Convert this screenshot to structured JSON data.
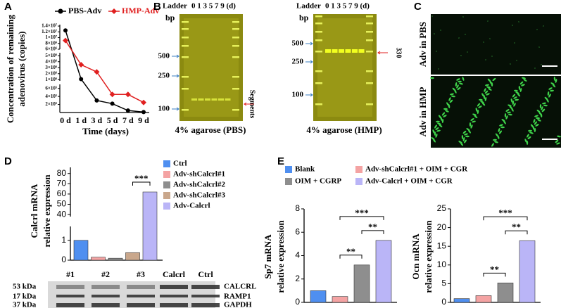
{
  "chart_data": [
    {
      "type": "line",
      "panel": "A",
      "ylabel": [
        "Concentration of remaining",
        "adenovirus (copies)"
      ],
      "xlabel": "Time (days)",
      "categories": [
        "0 d",
        "1 d",
        "3 d",
        "5 d",
        "7 d",
        "9 d"
      ],
      "series": [
        {
          "name": "PBS-Adv",
          "color": "#000000",
          "values": [
            12500000,
            1100000,
            300000,
            220000,
            50000,
            10000
          ]
        },
        {
          "name": "HMP-Adv",
          "color": "#e02020",
          "values": [
            9000000,
            3500000,
            2300000,
            450000,
            450000,
            250000
          ]
        }
      ],
      "y_segments": [
        {
          "ylim": [
            0,
            700000
          ],
          "yticks": [
            {
              "value": 200000,
              "label": "2×10⁵"
            },
            {
              "value": 400000,
              "label": "4×10⁵"
            },
            {
              "value": 600000,
              "label": "6×10⁵"
            }
          ]
        },
        {
          "ylim": [
            800000,
            5500000
          ],
          "yticks": [
            {
              "value": 1000000,
              "label": "1×10⁶"
            },
            {
              "value": 2000000,
              "label": "2×10⁶"
            },
            {
              "value": 3000000,
              "label": "3×10⁶"
            },
            {
              "value": 4000000,
              "label": "4×10⁶"
            },
            {
              "value": 5000000,
              "label": "5×10⁶"
            }
          ]
        },
        {
          "ylim": [
            6000000,
            14500000
          ],
          "yticks": [
            {
              "value": 6000000,
              "label": "6×10⁶"
            },
            {
              "value": 8000000,
              "label": "8×10⁶"
            },
            {
              "value": 10000000,
              "label": "1×10⁷"
            },
            {
              "value": 12000000,
              "label": "1.2×10⁷"
            },
            {
              "value": 14000000,
              "label": "1.4×10⁷"
            }
          ]
        }
      ],
      "legend": "top"
    },
    {
      "type": "bar",
      "panel": "D",
      "categories": [
        "Ctrl",
        "Adv-shCalcrl#1",
        "Adv-shCalcrl#2",
        "Adv-shCalcrl#3",
        "Adv-Calcrl"
      ],
      "colors": [
        "#4f8ff0",
        "#f4a3a3",
        "#8e8e8e",
        "#c9a78c",
        "#bab5f7"
      ],
      "ylabel": [
        "Calcrl mRNA",
        "relative expression"
      ],
      "values": [
        1,
        0.15,
        0.1,
        0.38,
        62
      ],
      "y_segments": [
        {
          "ylim": [
            0,
            1.7
          ],
          "yticks": [
            0,
            1
          ]
        },
        {
          "ylim": [
            38,
            86
          ],
          "yticks": [
            40,
            50,
            60,
            70,
            80
          ]
        }
      ],
      "significance": [
        {
          "from": 3,
          "to": 4,
          "label": "***"
        }
      ]
    },
    {
      "type": "bar",
      "panel": "E",
      "categories": [
        "Blank",
        "Adv-shCalcrl#1 + OIM + CGR",
        "OIM + CGRP",
        "Adv-Calcrl + OIM + CGR"
      ],
      "colors": [
        "#4f8ff0",
        "#f4a3a3",
        "#8e8e8e",
        "#bab5f7"
      ],
      "subplots": [
        {
          "ylabel": [
            "Sp7 mRNA",
            "relative expression"
          ],
          "values": [
            1,
            0.5,
            3.2,
            5.3
          ],
          "ylim": [
            0,
            8
          ],
          "yticks": [
            0,
            2,
            4,
            6,
            8
          ],
          "significance": [
            {
              "from": 1,
              "to": 2,
              "label": "**"
            },
            {
              "from": 2,
              "to": 3,
              "label": "**"
            },
            {
              "from": 1,
              "to": 3,
              "label": "***"
            }
          ]
        },
        {
          "ylabel": [
            "Ocn mRNA",
            "relative expression"
          ],
          "values": [
            1,
            1.8,
            5.2,
            16.5
          ],
          "ylim": [
            0,
            25
          ],
          "yticks": [
            0,
            5,
            10,
            15,
            20,
            25
          ],
          "significance": [
            {
              "from": 1,
              "to": 2,
              "label": "**"
            },
            {
              "from": 2,
              "to": 3,
              "label": "**"
            },
            {
              "from": 1,
              "to": 3,
              "label": "***"
            }
          ]
        }
      ]
    }
  ],
  "gels": {
    "panel": "B",
    "items": [
      {
        "ladder": "Ladder",
        "lanes": "0 1 3 5 7 9 (d)",
        "unit": "bp",
        "markers": [
          500,
          250,
          100
        ],
        "annotation": "Segments",
        "caption": "4% agarose (PBS)"
      },
      {
        "ladder": "Ladder",
        "lanes": "0 1 3 5 7 9 (d)",
        "unit": "bp",
        "markers": [
          500,
          250,
          100
        ],
        "annotation": "330",
        "caption": "4% agarose (HMP)"
      }
    ]
  },
  "images": {
    "panel": "C",
    "labels": [
      "Adv in PBS",
      "Adv in HMP"
    ]
  },
  "blot": {
    "lanes": [
      "#1",
      "#2",
      "#3",
      "Calcrl",
      "Ctrl"
    ],
    "sizes": [
      "53 kDa",
      "17 kDa",
      "37 kDa"
    ],
    "proteins": [
      "CALCRL",
      "RAMP1",
      "GAPDH"
    ]
  }
}
